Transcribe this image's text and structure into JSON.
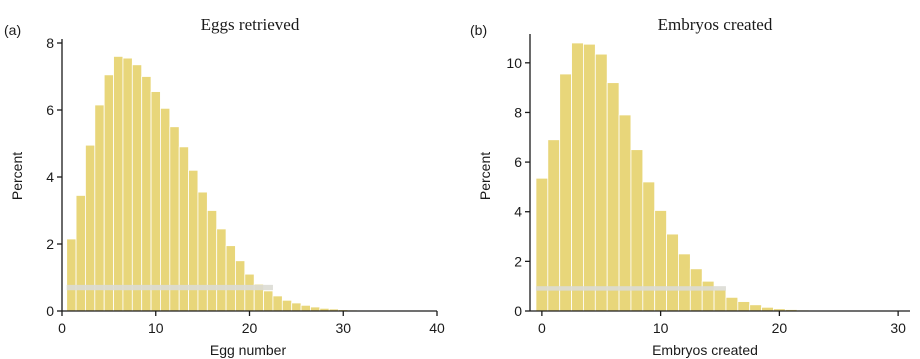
{
  "colors": {
    "bar_fill": "#e8d67a",
    "bar_edge": "#ffffff",
    "band_fill": "#dcdcd4",
    "axis": "#1a1a1a"
  },
  "chart_data": [
    {
      "panel_label": "(a)",
      "type": "bar",
      "title": "Eggs retrieved",
      "xlabel": "Egg number",
      "ylabel": "Percent",
      "xlim": [
        0,
        40
      ],
      "ylim": [
        0,
        8
      ],
      "xticks": [
        0,
        10,
        20,
        30,
        40
      ],
      "yticks": [
        0,
        2,
        4,
        6,
        8
      ],
      "grid": false,
      "x": [
        1,
        2,
        3,
        4,
        5,
        6,
        7,
        8,
        9,
        10,
        11,
        12,
        13,
        14,
        15,
        16,
        17,
        18,
        19,
        20,
        21,
        22,
        23,
        24,
        25,
        26,
        27,
        28,
        29,
        30,
        31,
        32,
        33,
        34,
        35,
        36,
        37,
        38,
        39,
        40
      ],
      "values": [
        2.15,
        3.45,
        4.95,
        6.15,
        7.05,
        7.6,
        7.55,
        7.35,
        7.0,
        6.55,
        6.05,
        5.5,
        4.9,
        4.2,
        3.55,
        3.0,
        2.45,
        1.95,
        1.5,
        1.1,
        0.8,
        0.6,
        0.45,
        0.32,
        0.24,
        0.17,
        0.12,
        0.08,
        0.06,
        0.04,
        0.03,
        0.02,
        0.015,
        0.01,
        0.01,
        0.01,
        0.01,
        0.01,
        0.01,
        0.01
      ],
      "band": {
        "y_from": 0.62,
        "y_to": 0.78,
        "x_from": 1,
        "x_to": 22
      }
    },
    {
      "panel_label": "(b)",
      "type": "bar",
      "title": "Embryos created",
      "xlabel": "Embryos created",
      "ylabel": "Percent",
      "xlim": [
        -1,
        31
      ],
      "ylim": [
        0,
        11
      ],
      "xticks": [
        0,
        10,
        20,
        30
      ],
      "yticks": [
        0,
        2,
        4,
        6,
        8,
        10
      ],
      "grid": false,
      "x": [
        0,
        1,
        2,
        3,
        4,
        5,
        6,
        7,
        8,
        9,
        10,
        11,
        12,
        13,
        14,
        15,
        16,
        17,
        18,
        19,
        20,
        21,
        22,
        23,
        24,
        25,
        26,
        27,
        28,
        29,
        30
      ],
      "values": [
        5.35,
        6.9,
        9.55,
        10.8,
        10.75,
        10.35,
        9.2,
        7.9,
        6.5,
        5.2,
        4.05,
        3.1,
        2.3,
        1.7,
        1.2,
        0.85,
        0.55,
        0.38,
        0.25,
        0.15,
        0.09,
        0.06,
        0.04,
        0.03,
        0.02,
        0.015,
        0.01,
        0.01,
        0.01,
        0.01,
        0.01
      ],
      "band": {
        "y_from": 0.82,
        "y_to": 1.0,
        "x_from": 0,
        "x_to": 15
      }
    }
  ]
}
